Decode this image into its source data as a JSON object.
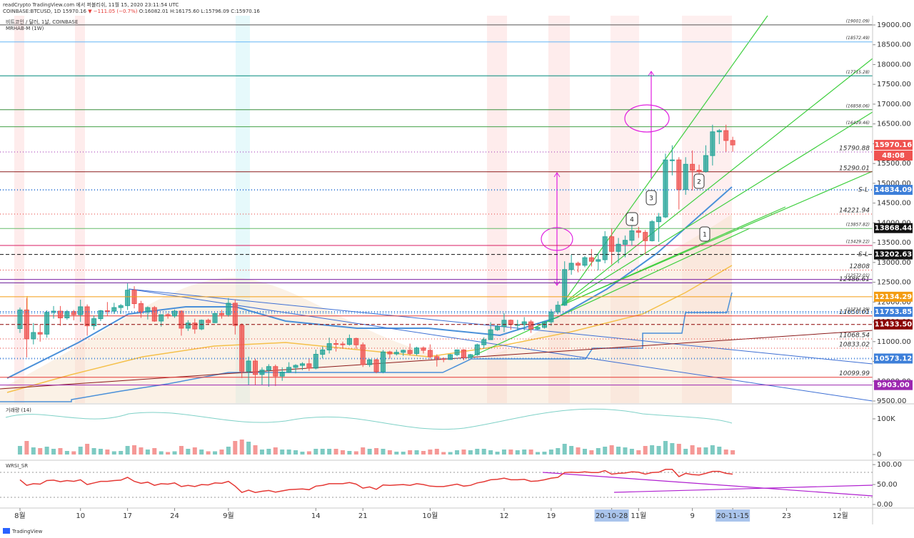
{
  "header": {
    "publish": "readCrypto TradingView.com 에서 퍼블리쉬, 11월 15, 2020 23:11:54 UTC",
    "symbol": "COINBASE:BTCUSD, 1D 15970.16",
    "change": "▼ −111.05 (−0.7%)",
    "ohlc": "O:16082.01 H:16175.60 L:15796.09 C:15970.16"
  },
  "legend": [
    "비트코인 / 달러, 1날, COINBASE",
    "MRHAB-M (1W)"
  ],
  "panel_labels": [
    "거래량 (14)",
    "WRSI_SR"
  ],
  "callouts": [
    "1",
    "2",
    "3",
    "4"
  ],
  "countdown": "48:08",
  "footer": "TradingView",
  "chart_data": [
    {
      "type": "candlestick",
      "up_color": "#26a69a",
      "down_color": "#ef5350",
      "x": [
        0,
        1,
        2,
        3,
        4,
        5,
        6,
        7,
        8,
        9,
        10,
        11,
        12,
        13,
        14,
        15,
        16,
        17,
        18,
        19,
        20,
        21,
        22,
        23,
        24,
        25,
        26,
        27,
        28,
        29,
        30,
        31,
        32,
        33,
        34,
        35,
        36,
        37,
        38,
        39,
        40,
        41,
        42,
        43,
        44,
        45,
        46,
        47,
        48,
        49,
        50,
        51,
        52,
        53,
        54,
        55,
        56,
        57,
        58,
        59,
        60,
        61,
        62,
        63,
        64,
        65,
        66,
        67,
        68,
        69,
        70,
        71,
        72,
        73,
        74,
        75,
        76,
        77,
        78,
        79,
        80,
        81,
        82,
        83,
        84,
        85,
        86,
        87,
        88,
        89,
        90,
        91,
        92,
        93,
        94,
        95,
        96,
        97,
        98,
        99,
        100,
        101,
        102,
        103,
        104,
        105,
        106
      ],
      "open": [
        11330,
        11800,
        11070,
        11230,
        11190,
        11740,
        11770,
        11600,
        11760,
        11680,
        11880,
        11400,
        11580,
        11780,
        11770,
        11860,
        11910,
        12300,
        11960,
        11750,
        11860,
        11520,
        11680,
        11650,
        11770,
        11340,
        11470,
        11320,
        11540,
        11480,
        11710,
        11680,
        11970,
        11410,
        10250,
        10510,
        10170,
        10280,
        10370,
        10130,
        10230,
        10350,
        10400,
        10440,
        10330,
        10680,
        10790,
        10950,
        10940,
        10930,
        11080,
        10920,
        10420,
        10540,
        10240,
        10740,
        10690,
        10730,
        10780,
        10700,
        10840,
        10780,
        10620,
        10570,
        10550,
        10670,
        10790,
        10600,
        10670,
        10920,
        11050,
        11300,
        11380,
        11540,
        11430,
        11430,
        11500,
        11320,
        11360,
        11500,
        11750,
        11920,
        12820,
        12980,
        12930,
        13120,
        13030,
        13070,
        13650,
        13280,
        13460,
        13560,
        13800,
        13760,
        13550,
        14030,
        14150,
        15590,
        15590,
        14840,
        15480,
        15330,
        15300,
        15700,
        16300,
        16330,
        16082.01
      ],
      "high": [
        11860,
        12100,
        11470,
        11430,
        11790,
        11900,
        11900,
        11800,
        11800,
        12060,
        11940,
        11660,
        11800,
        12000,
        11980,
        11950,
        12470,
        12400,
        12030,
        11890,
        11900,
        11690,
        11720,
        11810,
        11790,
        11540,
        11580,
        11560,
        11580,
        11730,
        11800,
        12100,
        12070,
        11460,
        10620,
        10570,
        10350,
        10430,
        10420,
        10350,
        10480,
        10430,
        10480,
        10580,
        10800,
        10880,
        11100,
        11050,
        11000,
        11180,
        11100,
        10980,
        10560,
        10570,
        10790,
        10770,
        10800,
        10800,
        10950,
        10870,
        10880,
        10930,
        10680,
        10600,
        10690,
        10800,
        10810,
        10690,
        10950,
        11110,
        11490,
        11430,
        11720,
        11560,
        11550,
        11620,
        11550,
        11400,
        11520,
        11820,
        12020,
        13030,
        13200,
        13020,
        13160,
        13340,
        13240,
        13790,
        13860,
        13620,
        13680,
        14100,
        13900,
        13820,
        14070,
        14250,
        15750,
        15960,
        15660,
        15660,
        15830,
        15470,
        15960,
        16480,
        16370,
        16480,
        16175.6
      ],
      "low": [
        11220,
        10600,
        10930,
        11000,
        11100,
        11580,
        11400,
        11550,
        11540,
        11500,
        11150,
        11300,
        11520,
        11650,
        11700,
        11700,
        11800,
        11840,
        11600,
        11560,
        11500,
        11380,
        11580,
        11600,
        11150,
        11270,
        11200,
        11290,
        11420,
        11470,
        11580,
        11630,
        11180,
        10080,
        9900,
        9900,
        9910,
        9860,
        9880,
        10010,
        10210,
        10200,
        10280,
        10260,
        10300,
        10580,
        10700,
        10750,
        10820,
        10900,
        10820,
        10360,
        10360,
        10200,
        10200,
        10570,
        10650,
        10640,
        10650,
        10650,
        10700,
        10560,
        10370,
        10480,
        10540,
        10630,
        10530,
        10560,
        10640,
        10830,
        11050,
        11270,
        11240,
        11300,
        11280,
        11280,
        11220,
        11290,
        11330,
        11400,
        11690,
        11900,
        12690,
        12750,
        12880,
        12900,
        12800,
        12980,
        12950,
        12980,
        13130,
        13420,
        13620,
        13200,
        13530,
        13520,
        14120,
        15200,
        14340,
        14710,
        14820,
        15090,
        15270,
        15450,
        15990,
        15800,
        15796.09
      ],
      "close": [
        11800,
        11070,
        11230,
        11190,
        11740,
        11770,
        11600,
        11760,
        11680,
        11880,
        11400,
        11580,
        11780,
        11770,
        11860,
        11910,
        12300,
        11960,
        11750,
        11860,
        11520,
        11680,
        11650,
        11770,
        11340,
        11470,
        11320,
        11540,
        11480,
        11710,
        11680,
        11970,
        11410,
        10250,
        10510,
        10170,
        10280,
        10370,
        10130,
        10230,
        10350,
        10400,
        10440,
        10330,
        10680,
        10790,
        10950,
        10940,
        10930,
        11080,
        10920,
        10420,
        10540,
        10240,
        10740,
        10690,
        10730,
        10780,
        10700,
        10840,
        10780,
        10620,
        10570,
        10550,
        10670,
        10790,
        10600,
        10670,
        10920,
        11050,
        11300,
        11380,
        11540,
        11430,
        11430,
        11500,
        11320,
        11360,
        11500,
        11750,
        11920,
        12820,
        12980,
        12930,
        13120,
        13030,
        13070,
        13650,
        13280,
        13460,
        13560,
        13800,
        13760,
        13550,
        14030,
        14150,
        15590,
        15590,
        14840,
        15480,
        15330,
        15300,
        15700,
        16300,
        16330,
        16082.01,
        15970.16
      ],
      "xlim": [
        -2.97,
        126.8
      ],
      "xticks": [
        {
          "value": 0,
          "label": "8월"
        },
        {
          "value": 9,
          "label": "10"
        },
        {
          "value": 16,
          "label": "17"
        },
        {
          "value": 23,
          "label": "24"
        },
        {
          "value": 31,
          "label": "9월"
        },
        {
          "value": 44,
          "label": "14"
        },
        {
          "value": 51,
          "label": "21"
        },
        {
          "value": 61,
          "label": "10월"
        },
        {
          "value": 72,
          "label": "12"
        },
        {
          "value": 79,
          "label": "19"
        },
        {
          "value": 88,
          "label": "20-10-28",
          "highlight": true
        },
        {
          "value": 92,
          "label": "11월"
        },
        {
          "value": 100,
          "label": "9"
        },
        {
          "value": 106,
          "label": "20-11-15",
          "highlight": true
        },
        {
          "value": 114,
          "label": "23"
        },
        {
          "value": 122,
          "label": "12월"
        }
      ],
      "ylim": [
        9446,
        19234
      ],
      "yticks": [
        {
          "value": 9500,
          "label": "9500.00"
        },
        {
          "value": 10000,
          "label": "10000.00"
        },
        {
          "value": 10500,
          "label": "10500.00"
        },
        {
          "value": 11000,
          "label": "11000.00"
        },
        {
          "value": 11500,
          "label": "11500.00"
        },
        {
          "value": 12000,
          "label": "12000.00"
        },
        {
          "value": 12500,
          "label": "12500.00"
        },
        {
          "value": 13000,
          "label": "13000.00"
        },
        {
          "value": 13500,
          "label": "13500.00"
        },
        {
          "value": 14000,
          "label": "14000.00"
        },
        {
          "value": 14500,
          "label": "14500.00"
        },
        {
          "value": 15000,
          "label": "15000.00"
        },
        {
          "value": 15500,
          "label": "15500.00"
        },
        {
          "value": 16000,
          "label": "16000.00"
        },
        {
          "value": 16500,
          "label": "16500.00"
        },
        {
          "value": 17000,
          "label": "17000.00"
        },
        {
          "value": 17500,
          "label": "17500.00"
        },
        {
          "value": 18000,
          "label": "18000.00"
        },
        {
          "value": 18500,
          "label": "18500.00"
        },
        {
          "value": 19000,
          "label": "19000.00"
        }
      ],
      "grid": false,
      "levels": [
        {
          "value": 19001.09,
          "label": "(19001.09)",
          "color": "#555555",
          "style": "solid"
        },
        {
          "value": 18572.49,
          "label": "(18572.49)",
          "color": "#64b5f6",
          "style": "solid"
        },
        {
          "value": 17715.28,
          "label": "(17715.28)",
          "color": "#00897b",
          "style": "solid"
        },
        {
          "value": 16858.06,
          "label": "(16858.06)",
          "color": "#388e3c",
          "style": "solid"
        },
        {
          "value": 16429.46,
          "label": "(16429.46)",
          "color": "#43a047",
          "style": "solid"
        },
        {
          "value": 15790.88,
          "label": "15790.88",
          "color": "#9c27b0",
          "style": "dotted"
        },
        {
          "value": 15290.01,
          "label": "15290.01",
          "color": "#8b1a1a",
          "style": "solid"
        },
        {
          "value": 14221.94,
          "label": "14221.94",
          "color": "#e53935",
          "style": "dotted"
        },
        {
          "value": 13857.82,
          "label": "(13857.82)",
          "color": "#66bb6a",
          "style": "solid"
        },
        {
          "value": 13429.22,
          "label": "(13429.22)",
          "color": "#d81b60",
          "style": "solid"
        },
        {
          "value": 12808,
          "label": "12808",
          "color": "#e53935",
          "style": "dotted"
        },
        {
          "value": 12572.01,
          "label": "(12572.01)",
          "color": "#7b1fa2",
          "style": "solid"
        },
        {
          "value": 12486.61,
          "label": "12486.61",
          "color": "#6a1b9a",
          "style": "solid"
        },
        {
          "value": 11714.29,
          "label": "(11714.29)",
          "color": "#1e88e5",
          "style": "dotted"
        },
        {
          "value": 11650.01,
          "label": "11650.01",
          "color": "#e53935",
          "style": "solid"
        },
        {
          "value": 11068.54,
          "label": "11068.54",
          "color": "#e53935",
          "style": "dotted"
        },
        {
          "value": 10833.02,
          "label": "10833.02",
          "color": "#e53935",
          "style": "dotted"
        },
        {
          "value": 10099.99,
          "label": "10099.99",
          "color": "#e53935",
          "style": "solid"
        }
      ],
      "price_labels": [
        {
          "value": 15970.16,
          "label": "15970.16",
          "color": "#ef5350"
        },
        {
          "value": 14834.09,
          "label": "14834.09",
          "color": "#3d7fd9",
          "prefix": "S-L",
          "style": "dotted"
        },
        {
          "value": 13868.44,
          "label": "13868.44",
          "color": "#111111"
        },
        {
          "value": 13202.63,
          "label": "13202.63",
          "color": "#111111",
          "prefix": "S-L",
          "style": "dashed"
        },
        {
          "value": 12134.29,
          "label": "12134.29",
          "color": "#f39c12",
          "style": "solid"
        },
        {
          "value": 11753.85,
          "label": "11753.85",
          "color": "#3d7fd9",
          "style": "dotted"
        },
        {
          "value": 11433.5,
          "label": "11433.50",
          "color": "#8b0000",
          "style": "dashed"
        },
        {
          "value": 10573.12,
          "label": "10573.12",
          "color": "#3d7fd9",
          "style": "dotted"
        },
        {
          "value": 9903.0,
          "label": "9903.00",
          "color": "#9c27b0",
          "style": "solid"
        }
      ]
    },
    {
      "type": "bar",
      "values": [
        24000,
        38000,
        20000,
        18000,
        22000,
        16000,
        18000,
        10000,
        9000,
        22000,
        30000,
        18000,
        16000,
        14000,
        9000,
        10000,
        24000,
        26000,
        20000,
        14000,
        18000,
        9000,
        7000,
        9000,
        24000,
        16000,
        20000,
        14000,
        9000,
        9000,
        14000,
        22000,
        38000,
        42000,
        36000,
        26000,
        14000,
        16000,
        20000,
        14000,
        14000,
        12000,
        8000,
        9000,
        16000,
        16000,
        16000,
        16000,
        12000,
        10000,
        9000,
        20000,
        16000,
        18000,
        16000,
        12000,
        8000,
        8000,
        12000,
        12000,
        10000,
        14000,
        16000,
        7000,
        7000,
        12000,
        14000,
        12000,
        16000,
        16000,
        12000,
        8000,
        14000,
        14000,
        12000,
        14000,
        14000,
        7000,
        8000,
        14000,
        18000,
        30000,
        24000,
        20000,
        16000,
        12000,
        18000,
        22000,
        26000,
        22000,
        20000,
        16000,
        12000,
        24000,
        26000,
        24000,
        38000,
        32000,
        30000,
        16000,
        26000,
        20000,
        20000,
        26000,
        22000,
        14000,
        12000
      ],
      "ylim": [
        -6000,
        134000
      ],
      "yticks": [
        {
          "value": 100000,
          "label": "100K"
        },
        0
      ]
    },
    {
      "type": "line",
      "color": "#e53935",
      "values": [
        62,
        48,
        52,
        51,
        60,
        61,
        57,
        60,
        58,
        62,
        50,
        54,
        58,
        58,
        60,
        61,
        68,
        58,
        53,
        56,
        48,
        52,
        51,
        54,
        45,
        48,
        45,
        50,
        49,
        54,
        53,
        58,
        46,
        30,
        36,
        30,
        33,
        35,
        31,
        34,
        37,
        38,
        39,
        37,
        46,
        48,
        52,
        52,
        52,
        55,
        51,
        41,
        44,
        38,
        49,
        48,
        49,
        50,
        48,
        52,
        50,
        46,
        45,
        45,
        48,
        51,
        46,
        48,
        54,
        57,
        62,
        63,
        66,
        62,
        62,
        63,
        58,
        59,
        62,
        66,
        68,
        80,
        81,
        80,
        82,
        80,
        80,
        85,
        76,
        78,
        79,
        82,
        81,
        76,
        80,
        81,
        88,
        88,
        70,
        78,
        75,
        74,
        78,
        83,
        83,
        78,
        76
      ],
      "ylim": [
        -9,
        111
      ],
      "yticks": [
        {
          "value": 100,
          "label": "100.00"
        },
        {
          "value": 50,
          "label": "50.00"
        },
        {
          "value": 0,
          "label": "0.00"
        }
      ]
    }
  ]
}
